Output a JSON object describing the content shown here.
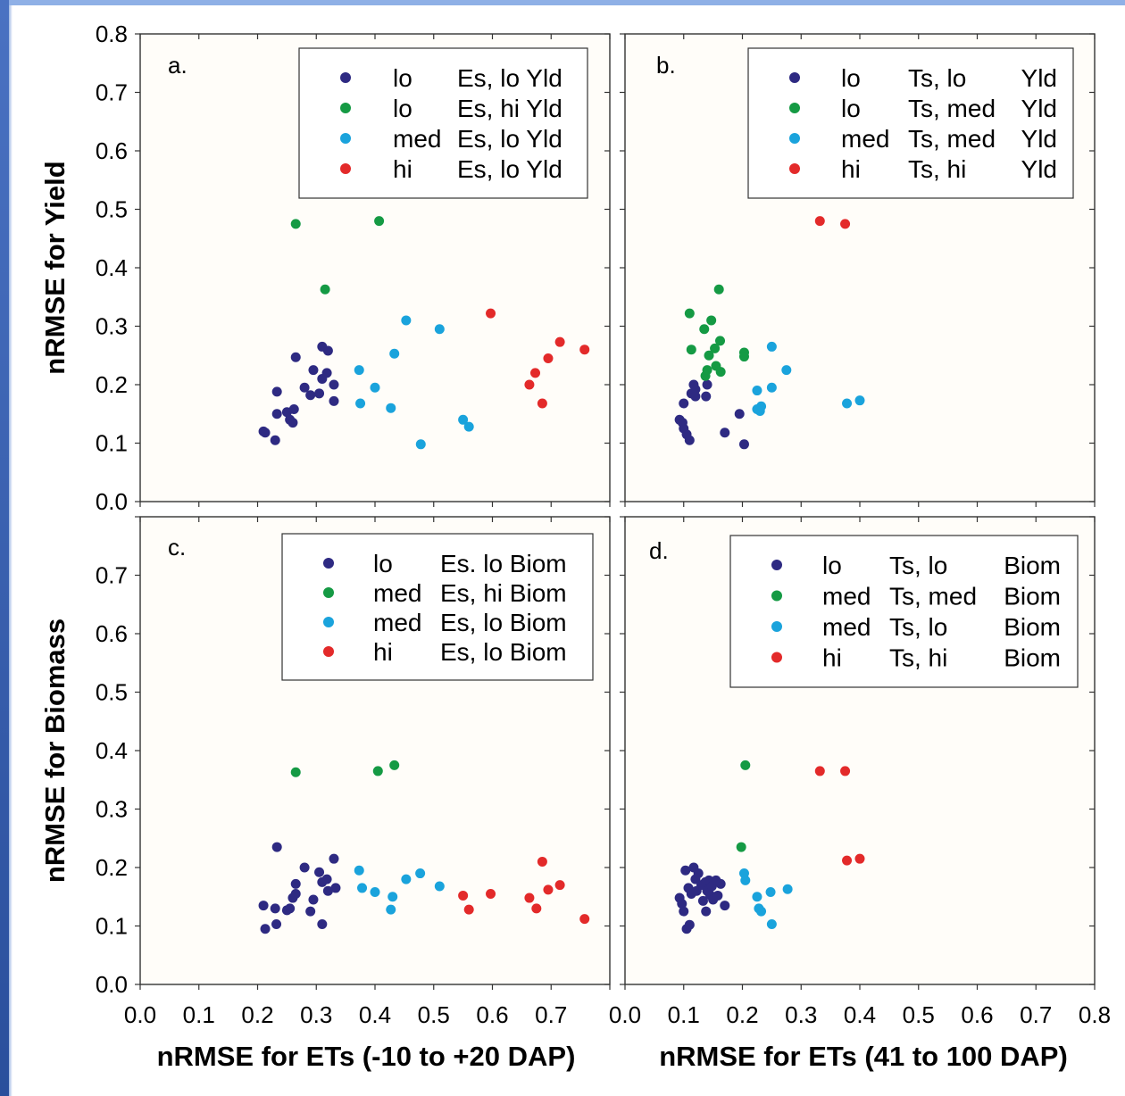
{
  "chart_data": [
    {
      "panel_label": "a.",
      "type": "scatter",
      "xlim": [
        0,
        0.8
      ],
      "ylim": [
        0,
        0.8
      ],
      "xticks": [],
      "yticks": [
        "0.0",
        "0.1",
        "0.2",
        "0.3",
        "0.4",
        "0.5",
        "0.6",
        "0.7",
        "0.8"
      ],
      "ylabel": "nRMSE for Yield",
      "xlabel": "",
      "legend": {
        "position": "top-right",
        "entries": [
          {
            "color": "#2e2a82",
            "c1": "lo",
            "c2": "Es, lo Yld"
          },
          {
            "color": "#159a44",
            "c1": "lo",
            "c2": "Es, hi Yld"
          },
          {
            "color": "#1aa3dc",
            "c1": "med",
            "c2": "Es, lo Yld"
          },
          {
            "color": "#e32a2a",
            "c1": "hi",
            "c2": "Es, lo Yld"
          }
        ]
      },
      "series": [
        {
          "color": "#2e2a82",
          "points": [
            [
              0.21,
              0.12
            ],
            [
              0.213,
              0.118
            ],
            [
              0.23,
              0.105
            ],
            [
              0.233,
              0.188
            ],
            [
              0.233,
              0.15
            ],
            [
              0.25,
              0.153
            ],
            [
              0.255,
              0.14
            ],
            [
              0.26,
              0.135
            ],
            [
              0.262,
              0.158
            ],
            [
              0.265,
              0.247
            ],
            [
              0.28,
              0.195
            ],
            [
              0.29,
              0.182
            ],
            [
              0.295,
              0.225
            ],
            [
              0.305,
              0.185
            ],
            [
              0.31,
              0.265
            ],
            [
              0.31,
              0.21
            ],
            [
              0.318,
              0.22
            ],
            [
              0.32,
              0.258
            ],
            [
              0.33,
              0.2
            ],
            [
              0.33,
              0.172
            ]
          ]
        },
        {
          "color": "#159a44",
          "points": [
            [
              0.265,
              0.475
            ],
            [
              0.315,
              0.363
            ],
            [
              0.407,
              0.48
            ]
          ]
        },
        {
          "color": "#1aa3dc",
          "points": [
            [
              0.373,
              0.225
            ],
            [
              0.375,
              0.168
            ],
            [
              0.4,
              0.195
            ],
            [
              0.427,
              0.16
            ],
            [
              0.433,
              0.253
            ],
            [
              0.453,
              0.31
            ],
            [
              0.478,
              0.098
            ],
            [
              0.51,
              0.295
            ],
            [
              0.55,
              0.14
            ],
            [
              0.56,
              0.128
            ]
          ]
        },
        {
          "color": "#e32a2a",
          "points": [
            [
              0.597,
              0.322
            ],
            [
              0.663,
              0.2
            ],
            [
              0.673,
              0.22
            ],
            [
              0.685,
              0.168
            ],
            [
              0.695,
              0.245
            ],
            [
              0.715,
              0.273
            ],
            [
              0.757,
              0.26
            ]
          ]
        }
      ]
    },
    {
      "panel_label": "b.",
      "type": "scatter",
      "xlim": [
        0,
        0.8
      ],
      "ylim": [
        0,
        0.8
      ],
      "xticks": [],
      "yticks": [],
      "ylabel": "",
      "xlabel": "",
      "legend": {
        "position": "top-right",
        "entries": [
          {
            "color": "#2e2a82",
            "c1": "lo",
            "c2": "Ts, lo",
            "c3": "Yld"
          },
          {
            "color": "#159a44",
            "c1": "lo",
            "c2": "Ts, med",
            "c3": "Yld"
          },
          {
            "color": "#1aa3dc",
            "c1": "med",
            "c2": "Ts, med",
            "c3": "Yld"
          },
          {
            "color": "#e32a2a",
            "c1": "hi",
            "c2": "Ts, hi",
            "c3": "Yld"
          }
        ]
      },
      "series": [
        {
          "color": "#2e2a82",
          "points": [
            [
              0.093,
              0.14
            ],
            [
              0.098,
              0.135
            ],
            [
              0.1,
              0.125
            ],
            [
              0.1,
              0.168
            ],
            [
              0.105,
              0.115
            ],
            [
              0.11,
              0.105
            ],
            [
              0.113,
              0.185
            ],
            [
              0.117,
              0.2
            ],
            [
              0.12,
              0.192
            ],
            [
              0.12,
              0.18
            ],
            [
              0.138,
              0.18
            ],
            [
              0.14,
              0.2
            ],
            [
              0.17,
              0.118
            ],
            [
              0.195,
              0.15
            ],
            [
              0.203,
              0.098
            ]
          ]
        },
        {
          "color": "#159a44",
          "points": [
            [
              0.11,
              0.322
            ],
            [
              0.113,
              0.26
            ],
            [
              0.135,
              0.295
            ],
            [
              0.137,
              0.215
            ],
            [
              0.14,
              0.225
            ],
            [
              0.143,
              0.25
            ],
            [
              0.147,
              0.31
            ],
            [
              0.153,
              0.262
            ],
            [
              0.155,
              0.232
            ],
            [
              0.16,
              0.363
            ],
            [
              0.162,
              0.275
            ],
            [
              0.163,
              0.222
            ],
            [
              0.203,
              0.255
            ],
            [
              0.203,
              0.248
            ]
          ]
        },
        {
          "color": "#1aa3dc",
          "points": [
            [
              0.225,
              0.19
            ],
            [
              0.225,
              0.158
            ],
            [
              0.23,
              0.155
            ],
            [
              0.232,
              0.163
            ],
            [
              0.25,
              0.195
            ],
            [
              0.25,
              0.265
            ],
            [
              0.275,
              0.225
            ],
            [
              0.378,
              0.168
            ],
            [
              0.4,
              0.173
            ]
          ]
        },
        {
          "color": "#e32a2a",
          "points": [
            [
              0.332,
              0.48
            ],
            [
              0.375,
              0.475
            ]
          ]
        }
      ]
    },
    {
      "panel_label": "c.",
      "type": "scatter",
      "xlim": [
        0,
        0.8
      ],
      "ylim": [
        0,
        0.8
      ],
      "xticks": [
        "0.0",
        "0.1",
        "0.2",
        "0.3",
        "0.4",
        "0.5",
        "0.6",
        "0.7"
      ],
      "yticks": [
        "0.0",
        "0.1",
        "0.2",
        "0.3",
        "0.4",
        "0.5",
        "0.6",
        "0.7"
      ],
      "ylabel": "nRMSE for Biomass",
      "xlabel": "nRMSE for ETs (-10 to +20 DAP)",
      "legend": {
        "position": "top-right",
        "entries": [
          {
            "color": "#2e2a82",
            "c1": "lo",
            "c2": "Es. lo Biom"
          },
          {
            "color": "#159a44",
            "c1": "med",
            "c2": "Es, hi Biom"
          },
          {
            "color": "#1aa3dc",
            "c1": "med",
            "c2": "Es, lo Biom"
          },
          {
            "color": "#e32a2a",
            "c1": "hi",
            "c2": "Es, lo Biom"
          }
        ]
      },
      "series": [
        {
          "color": "#2e2a82",
          "points": [
            [
              0.21,
              0.135
            ],
            [
              0.213,
              0.095
            ],
            [
              0.23,
              0.13
            ],
            [
              0.232,
              0.103
            ],
            [
              0.233,
              0.235
            ],
            [
              0.25,
              0.127
            ],
            [
              0.255,
              0.13
            ],
            [
              0.26,
              0.148
            ],
            [
              0.265,
              0.172
            ],
            [
              0.265,
              0.155
            ],
            [
              0.28,
              0.2
            ],
            [
              0.29,
              0.125
            ],
            [
              0.295,
              0.145
            ],
            [
              0.305,
              0.192
            ],
            [
              0.31,
              0.175
            ],
            [
              0.31,
              0.103
            ],
            [
              0.318,
              0.18
            ],
            [
              0.32,
              0.16
            ],
            [
              0.33,
              0.215
            ],
            [
              0.333,
              0.165
            ]
          ]
        },
        {
          "color": "#159a44",
          "points": [
            [
              0.265,
              0.363
            ],
            [
              0.405,
              0.365
            ],
            [
              0.433,
              0.375
            ]
          ]
        },
        {
          "color": "#1aa3dc",
          "points": [
            [
              0.373,
              0.195
            ],
            [
              0.378,
              0.165
            ],
            [
              0.4,
              0.158
            ],
            [
              0.427,
              0.128
            ],
            [
              0.43,
              0.15
            ],
            [
              0.453,
              0.18
            ],
            [
              0.477,
              0.19
            ],
            [
              0.51,
              0.168
            ]
          ]
        },
        {
          "color": "#e32a2a",
          "points": [
            [
              0.55,
              0.152
            ],
            [
              0.56,
              0.128
            ],
            [
              0.597,
              0.155
            ],
            [
              0.663,
              0.148
            ],
            [
              0.675,
              0.13
            ],
            [
              0.685,
              0.21
            ],
            [
              0.695,
              0.162
            ],
            [
              0.715,
              0.17
            ],
            [
              0.757,
              0.112
            ]
          ]
        }
      ]
    },
    {
      "panel_label": "d.",
      "type": "scatter",
      "xlim": [
        0,
        0.8
      ],
      "ylim": [
        0,
        0.8
      ],
      "xticks": [
        "0.0",
        "0.1",
        "0.2",
        "0.3",
        "0.4",
        "0.5",
        "0.6",
        "0.7",
        "0.8"
      ],
      "yticks": [],
      "ylabel": "",
      "xlabel": "nRMSE for ETs (41 to 100 DAP)",
      "legend": {
        "position": "top-right",
        "entries": [
          {
            "color": "#2e2a82",
            "c1": "lo",
            "c2": "Ts, lo",
            "c3": "Biom"
          },
          {
            "color": "#159a44",
            "c1": "med",
            "c2": "Ts, med",
            "c3": "Biom"
          },
          {
            "color": "#1aa3dc",
            "c1": "med",
            "c2": "Ts, lo",
            "c3": "Biom"
          },
          {
            "color": "#e32a2a",
            "c1": "hi",
            "c2": "Ts, hi",
            "c3": "Biom"
          }
        ]
      },
      "series": [
        {
          "color": "#2e2a82",
          "points": [
            [
              0.093,
              0.148
            ],
            [
              0.097,
              0.138
            ],
            [
              0.1,
              0.125
            ],
            [
              0.103,
              0.195
            ],
            [
              0.105,
              0.095
            ],
            [
              0.108,
              0.165
            ],
            [
              0.11,
              0.102
            ],
            [
              0.113,
              0.155
            ],
            [
              0.117,
              0.2
            ],
            [
              0.12,
              0.18
            ],
            [
              0.122,
              0.16
            ],
            [
              0.125,
              0.19
            ],
            [
              0.13,
              0.17
            ],
            [
              0.133,
              0.143
            ],
            [
              0.137,
              0.175
            ],
            [
              0.138,
              0.125
            ],
            [
              0.14,
              0.16
            ],
            [
              0.143,
              0.178
            ],
            [
              0.145,
              0.153
            ],
            [
              0.148,
              0.168
            ],
            [
              0.15,
              0.145
            ],
            [
              0.155,
              0.178
            ],
            [
              0.158,
              0.152
            ],
            [
              0.163,
              0.172
            ],
            [
              0.17,
              0.135
            ]
          ]
        },
        {
          "color": "#159a44",
          "points": [
            [
              0.198,
              0.235
            ],
            [
              0.205,
              0.375
            ]
          ]
        },
        {
          "color": "#1aa3dc",
          "points": [
            [
              0.203,
              0.19
            ],
            [
              0.205,
              0.178
            ],
            [
              0.225,
              0.15
            ],
            [
              0.228,
              0.13
            ],
            [
              0.232,
              0.125
            ],
            [
              0.248,
              0.158
            ],
            [
              0.25,
              0.103
            ],
            [
              0.277,
              0.163
            ]
          ]
        },
        {
          "color": "#e32a2a",
          "points": [
            [
              0.332,
              0.365
            ],
            [
              0.375,
              0.365
            ],
            [
              0.378,
              0.212
            ],
            [
              0.4,
              0.215
            ]
          ]
        }
      ]
    }
  ]
}
